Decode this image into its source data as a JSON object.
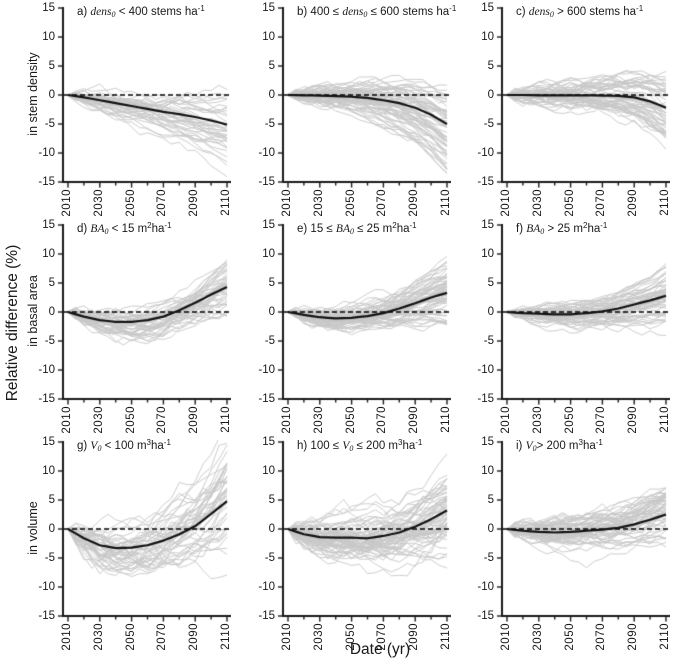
{
  "figure": {
    "ylabel": "Relative difference (%)",
    "xlabel": "Date (yr)",
    "row_labels": [
      "in stem density",
      "in basal area",
      "in volume"
    ]
  },
  "axes": {
    "y_ticks": [
      15,
      10,
      5,
      0,
      -5,
      -10,
      -15
    ],
    "x_ticks": [
      2010,
      2030,
      2050,
      2070,
      2090,
      2110
    ],
    "x_minor_step": 10,
    "y_range": [
      -15,
      15
    ],
    "x_range": [
      2010,
      2110
    ]
  },
  "colors": {
    "spaghetti": "#c8c8c8",
    "mean": "#111111",
    "axis": "#1a1a1a",
    "dashed": "#000000",
    "background": "#ffffff"
  },
  "chart_data": [
    {
      "id": "a",
      "type": "line",
      "title": [
        {
          "k": "plain",
          "s": "a) "
        },
        {
          "k": "var",
          "s": "dens"
        },
        {
          "k": "sub",
          "s": "0"
        },
        {
          "k": "plain",
          "s": " < 400 stems ha"
        },
        {
          "k": "sup",
          "s": "-1"
        }
      ],
      "x": [
        2010,
        2020,
        2030,
        2040,
        2050,
        2060,
        2070,
        2080,
        2090,
        2100,
        2110
      ],
      "mean": [
        0,
        -0.4,
        -0.9,
        -1.4,
        -1.9,
        -2.4,
        -2.9,
        -3.3,
        -3.8,
        -4.4,
        -5.1
      ],
      "zero_line": 0,
      "ylim": [
        -15,
        15
      ],
      "n_runs": 38,
      "spread": 4.5,
      "early": 0.8,
      "seed": 11
    },
    {
      "id": "b",
      "type": "line",
      "title": [
        {
          "k": "plain",
          "s": "b) 400 ≤ "
        },
        {
          "k": "var",
          "s": "dens"
        },
        {
          "k": "sub",
          "s": "0"
        },
        {
          "k": "plain",
          "s": " ≤ 600 stems ha"
        },
        {
          "k": "sup",
          "s": "-1"
        }
      ],
      "x": [
        2010,
        2020,
        2030,
        2040,
        2050,
        2060,
        2070,
        2080,
        2090,
        2100,
        2110
      ],
      "mean": [
        0,
        -0.05,
        -0.1,
        -0.2,
        -0.3,
        -0.5,
        -0.9,
        -1.4,
        -2.2,
        -3.4,
        -5.0
      ],
      "zero_line": 0,
      "ylim": [
        -15,
        15
      ],
      "n_runs": 68,
      "spread": 5.5,
      "early": 0.8,
      "seed": 22
    },
    {
      "id": "c",
      "type": "line",
      "title": [
        {
          "k": "plain",
          "s": "c) "
        },
        {
          "k": "var",
          "s": "dens"
        },
        {
          "k": "sub",
          "s": "0"
        },
        {
          "k": "plain",
          "s": " > 600 stems ha"
        },
        {
          "k": "sup",
          "s": "-1"
        }
      ],
      "x": [
        2010,
        2020,
        2030,
        2040,
        2050,
        2060,
        2070,
        2080,
        2090,
        2100,
        2110
      ],
      "mean": [
        0,
        0,
        -0.05,
        -0.05,
        -0.05,
        -0.05,
        -0.1,
        -0.15,
        -0.4,
        -1.1,
        -2.2
      ],
      "zero_line": 0,
      "ylim": [
        -15,
        15
      ],
      "n_runs": 58,
      "spread": 5.5,
      "early": 0.9,
      "seed": 33
    },
    {
      "id": "d",
      "type": "line",
      "title": [
        {
          "k": "plain",
          "s": "d) "
        },
        {
          "k": "var",
          "s": "BA"
        },
        {
          "k": "sub",
          "s": "0"
        },
        {
          "k": "plain",
          "s": " < 15 m"
        },
        {
          "k": "sup",
          "s": "2"
        },
        {
          "k": "plain",
          "s": "ha"
        },
        {
          "k": "sup",
          "s": "-1"
        }
      ],
      "x": [
        2010,
        2020,
        2030,
        2040,
        2050,
        2060,
        2070,
        2080,
        2090,
        2100,
        2110
      ],
      "mean": [
        0,
        -0.8,
        -1.4,
        -1.7,
        -1.7,
        -1.4,
        -0.8,
        0.3,
        1.6,
        3.0,
        4.3
      ],
      "zero_line": 0,
      "ylim": [
        -15,
        15
      ],
      "n_runs": 48,
      "spread": 3.2,
      "early": 1.0,
      "seed": 44
    },
    {
      "id": "e",
      "type": "line",
      "title": [
        {
          "k": "plain",
          "s": "e) 15 ≤ "
        },
        {
          "k": "var",
          "s": "BA"
        },
        {
          "k": "sub",
          "s": "0"
        },
        {
          "k": "plain",
          "s": " ≤ 25 m"
        },
        {
          "k": "sup",
          "s": "2"
        },
        {
          "k": "plain",
          "s": "ha"
        },
        {
          "k": "sup",
          "s": "-1"
        }
      ],
      "x": [
        2010,
        2020,
        2030,
        2040,
        2050,
        2060,
        2070,
        2080,
        2090,
        2100,
        2110
      ],
      "mean": [
        0,
        -0.5,
        -0.9,
        -1.1,
        -1.0,
        -0.7,
        -0.2,
        0.6,
        1.5,
        2.5,
        3.3
      ],
      "zero_line": 0,
      "ylim": [
        -15,
        15
      ],
      "n_runs": 68,
      "spread": 3.2,
      "early": 0.8,
      "seed": 55
    },
    {
      "id": "f",
      "type": "line",
      "title": [
        {
          "k": "plain",
          "s": "f) "
        },
        {
          "k": "var",
          "s": "BA"
        },
        {
          "k": "sub",
          "s": "0"
        },
        {
          "k": "plain",
          "s": " > 25 m"
        },
        {
          "k": "sup",
          "s": "2"
        },
        {
          "k": "plain",
          "s": "ha"
        },
        {
          "k": "sup",
          "s": "-1"
        }
      ],
      "x": [
        2010,
        2020,
        2030,
        2040,
        2050,
        2060,
        2070,
        2080,
        2090,
        2100,
        2110
      ],
      "mean": [
        0,
        -0.2,
        -0.3,
        -0.4,
        -0.4,
        -0.2,
        0.1,
        0.6,
        1.3,
        2.0,
        2.8
      ],
      "zero_line": 0,
      "ylim": [
        -15,
        15
      ],
      "n_runs": 58,
      "spread": 3.5,
      "early": 0.8,
      "seed": 66
    },
    {
      "id": "g",
      "type": "line",
      "title": [
        {
          "k": "plain",
          "s": "g) "
        },
        {
          "k": "var",
          "s": "V"
        },
        {
          "k": "sub",
          "s": "0"
        },
        {
          "k": "plain",
          "s": " < 100 m"
        },
        {
          "k": "sup",
          "s": "3"
        },
        {
          "k": "plain",
          "s": "ha"
        },
        {
          "k": "sup",
          "s": "-1"
        }
      ],
      "x": [
        2010,
        2020,
        2030,
        2040,
        2050,
        2060,
        2070,
        2080,
        2090,
        2100,
        2110
      ],
      "mean": [
        0,
        -1.6,
        -2.8,
        -3.3,
        -3.2,
        -2.8,
        -2.0,
        -0.9,
        0.5,
        2.6,
        4.8
      ],
      "zero_line": 0,
      "ylim": [
        -15,
        15
      ],
      "n_runs": 48,
      "spread": 4.5,
      "early": 1.8,
      "seed": 77
    },
    {
      "id": "h",
      "type": "line",
      "title": [
        {
          "k": "plain",
          "s": "h) 100 ≤ "
        },
        {
          "k": "var",
          "s": "V"
        },
        {
          "k": "sub",
          "s": "0"
        },
        {
          "k": "plain",
          "s": " ≤ 200 m"
        },
        {
          "k": "sup",
          "s": "3"
        },
        {
          "k": "plain",
          "s": "ha"
        },
        {
          "k": "sup",
          "s": "-1"
        }
      ],
      "x": [
        2010,
        2020,
        2030,
        2040,
        2050,
        2060,
        2070,
        2080,
        2090,
        2100,
        2110
      ],
      "mean": [
        0,
        -0.9,
        -1.4,
        -1.5,
        -1.5,
        -1.6,
        -1.2,
        -0.6,
        0.4,
        1.7,
        3.2
      ],
      "zero_line": 0,
      "ylim": [
        -15,
        15
      ],
      "n_runs": 70,
      "spread": 4.2,
      "early": 1.5,
      "seed": 88
    },
    {
      "id": "i",
      "type": "line",
      "title": [
        {
          "k": "plain",
          "s": "i) "
        },
        {
          "k": "var",
          "s": "V"
        },
        {
          "k": "sub",
          "s": "0"
        },
        {
          "k": "plain",
          "s": "> 200 m"
        },
        {
          "k": "sup",
          "s": "3"
        },
        {
          "k": "plain",
          "s": "ha"
        },
        {
          "k": "sup",
          "s": "-1"
        }
      ],
      "x": [
        2010,
        2020,
        2030,
        2040,
        2050,
        2060,
        2070,
        2080,
        2090,
        2100,
        2110
      ],
      "mean": [
        0,
        -0.3,
        -0.5,
        -0.6,
        -0.5,
        -0.3,
        -0.1,
        0.2,
        0.8,
        1.6,
        2.5
      ],
      "zero_line": 0,
      "ylim": [
        -15,
        15
      ],
      "n_runs": 62,
      "spread": 4.0,
      "early": 1.2,
      "seed": 99
    }
  ]
}
